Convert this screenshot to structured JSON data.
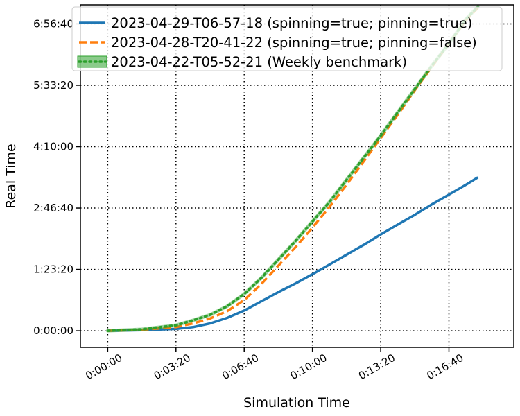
{
  "chart_data": {
    "type": "line",
    "xlabel": "Simulation Time",
    "ylabel": "Real Time",
    "xlim_seconds": [
      -80,
      1190
    ],
    "ylim_seconds": [
      -1350,
      26550
    ],
    "x_tick_seconds": [
      0,
      200,
      400,
      600,
      800,
      1000
    ],
    "x_tick_labels": [
      "0:00:00",
      "0:03:20",
      "0:06:40",
      "0:10:00",
      "0:13:20",
      "0:16:40"
    ],
    "y_tick_seconds": [
      0,
      5000,
      10000,
      15000,
      20000,
      25000
    ],
    "y_tick_labels": [
      "0:00:00",
      "1:23:20",
      "2:46:40",
      "4:10:00",
      "5:33:20",
      "6:56:40"
    ],
    "grid": true,
    "legend_position": "top",
    "series": [
      {
        "name": "2023-04-29-T06-57-18 (spinning=true; pinning=true)",
        "color": "#1f77b4",
        "style": "solid",
        "x": [
          0,
          100,
          200,
          250,
          300,
          350,
          400,
          450,
          500,
          550,
          600,
          650,
          700,
          750,
          800,
          850,
          900,
          950,
          1000,
          1050,
          1085
        ],
        "y": [
          0,
          50,
          150,
          300,
          600,
          1050,
          1650,
          2400,
          3150,
          3850,
          4600,
          5400,
          6200,
          7000,
          7850,
          8650,
          9450,
          10300,
          11100,
          11900,
          12500
        ]
      },
      {
        "name": "2023-04-28-T20-41-22 (spinning=true; pinning=false)",
        "color": "#ff7f0e",
        "style": "dashed",
        "x": [
          0,
          100,
          200,
          250,
          300,
          350,
          400,
          450,
          500,
          550,
          600,
          650,
          700,
          750,
          800,
          850,
          900,
          950,
          1000,
          1050,
          1085
        ],
        "y": [
          0,
          80,
          300,
          600,
          1000,
          1600,
          2500,
          3800,
          5300,
          6800,
          8400,
          10100,
          11900,
          13800,
          15700,
          17600,
          19600,
          21500,
          23400,
          25300,
          26300
        ]
      },
      {
        "name": "2023-04-22-T05-52-21 (Weekly benchmark)",
        "color": "#2ca02c",
        "style": "dotted",
        "x": [
          0,
          100,
          200,
          250,
          300,
          350,
          400,
          450,
          500,
          550,
          600,
          650,
          700,
          750,
          800,
          850,
          900,
          950,
          1000,
          1050,
          1085
        ],
        "y": [
          0,
          120,
          450,
          850,
          1300,
          2000,
          3000,
          4300,
          5800,
          7300,
          8900,
          10500,
          12300,
          14100,
          15900,
          17800,
          19700,
          21600,
          23400,
          25400,
          26400
        ]
      }
    ]
  }
}
